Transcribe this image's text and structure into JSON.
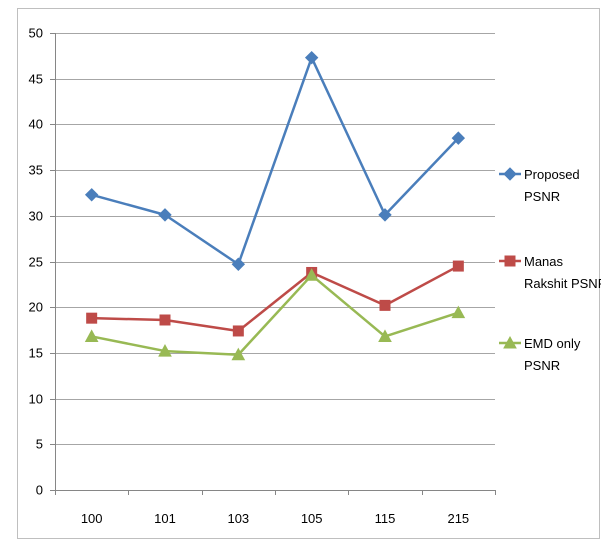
{
  "chart_data": {
    "type": "line",
    "categories": [
      "100",
      "101",
      "103",
      "105",
      "115",
      "215"
    ],
    "ylim": [
      0,
      50
    ],
    "yticks": [
      0,
      5,
      10,
      15,
      20,
      25,
      30,
      35,
      40,
      45,
      50
    ],
    "ytick_labels": [
      "0",
      "5",
      "10",
      "15",
      "20",
      "25",
      "30",
      "35",
      "40",
      "45",
      "50"
    ],
    "grid": true,
    "legend_position": "right",
    "series": [
      {
        "name": "Proposed PSNR",
        "legend_lines": [
          "Proposed",
          "PSNR"
        ],
        "values": [
          32.3,
          30.1,
          24.7,
          47.3,
          30.1,
          38.5
        ],
        "color": "#4a7ebb",
        "marker": "diamond"
      },
      {
        "name": "Manas Rakshit PSNR",
        "legend_lines": [
          "Manas",
          "Rakshit PSNR"
        ],
        "values": [
          18.8,
          18.6,
          17.4,
          23.8,
          20.2,
          24.5
        ],
        "color": "#be4b48",
        "marker": "square"
      },
      {
        "name": "EMD only PSNR",
        "legend_lines": [
          "EMD only",
          "PSNR"
        ],
        "values": [
          16.8,
          15.2,
          14.8,
          23.5,
          16.8,
          19.4
        ],
        "color": "#98b954",
        "marker": "triangle"
      }
    ]
  }
}
